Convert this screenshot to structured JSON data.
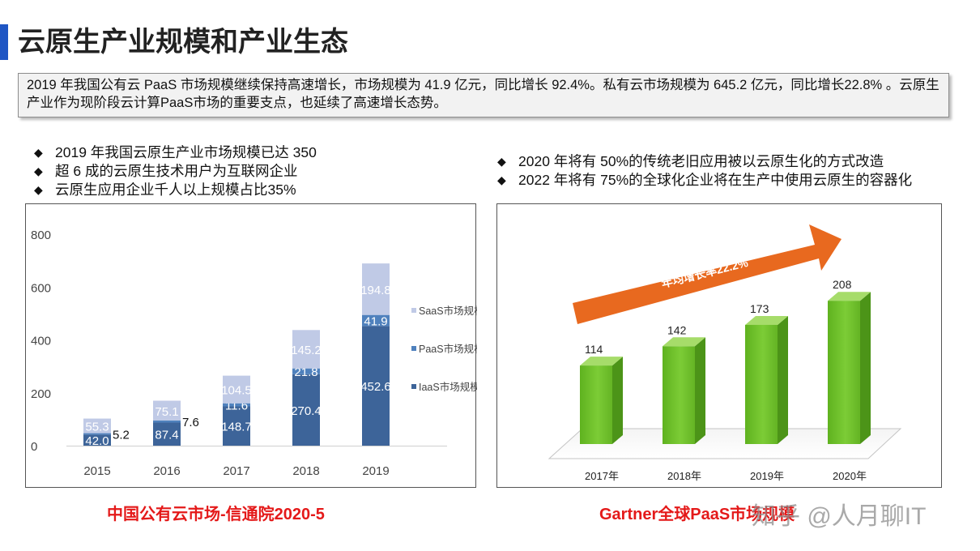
{
  "header": {
    "title": "云原生产业规模和产业生态"
  },
  "summary": {
    "text": "2019 年我国公有云 PaaS 市场规模继续保持高速增长，市场规模为 41.9 亿元，同比增长 92.4%。私有云市场规模为 645.2 亿元，同比增长22.8% 。云原生产业作为现阶段云计算PaaS市场的重要支点，也延续了高速增长态势。"
  },
  "left_bullets": [
    "2019 年我国云原生产业市场规模已达 350",
    "超 6 成的云原生技术用户为互联网企业",
    "云原生应用企业千人以上规模占比35%"
  ],
  "right_bullets": [
    "2020 年将有 50%的传统老旧应用被以云原生化的方式改造",
    "2022 年将有 75%的全球化企业将在生产中使用云原生的容器化"
  ],
  "bullet_symbol": "◆",
  "captions": {
    "left": "中国公有云市场-信通院2020-5",
    "right": "Gartner全球PaaS市场规模"
  },
  "watermark": "知乎 @人月聊IT",
  "chart_data": [
    {
      "type": "bar",
      "stacked": true,
      "title": "中国公有云市场-信通院2020-5",
      "categories": [
        "2015",
        "2016",
        "2017",
        "2018",
        "2019"
      ],
      "ylim": [
        0,
        800
      ],
      "yticks": [
        0,
        200,
        400,
        600,
        800
      ],
      "legend_position": "right",
      "series": [
        {
          "name": "IaaS市场规模",
          "values": [
            42.0,
            87.4,
            148.7,
            270.4,
            452.6
          ],
          "labels": [
            "42.0",
            "87.4",
            "148.7",
            "270.4",
            "452.6"
          ],
          "color": "#3d6499"
        },
        {
          "name": "PaaS市场规模",
          "values": [
            5.2,
            7.6,
            11.6,
            21.8,
            41.9
          ],
          "labels": [
            "5.2",
            "7.6",
            "11.6",
            "21.8",
            "41.9"
          ],
          "color": "#4f81bd"
        },
        {
          "name": "SaaS市场规模",
          "values": [
            55.3,
            75.1,
            104.5,
            145.2,
            194.8
          ],
          "labels": [
            "55.3",
            "75.1",
            "104.5",
            "145.2",
            "194.8"
          ],
          "color": "#c0cae6"
        }
      ]
    },
    {
      "type": "bar",
      "title": "Gartner全球PaaS市场规模",
      "categories": [
        "2017年",
        "2018年",
        "2019年",
        "2020年"
      ],
      "values": [
        114,
        142,
        173,
        208
      ],
      "ylim": [
        0,
        240
      ],
      "annotation": "年均增长率22.2%",
      "color": "#6ebd2b",
      "arrow_color": "#e8691f"
    }
  ]
}
